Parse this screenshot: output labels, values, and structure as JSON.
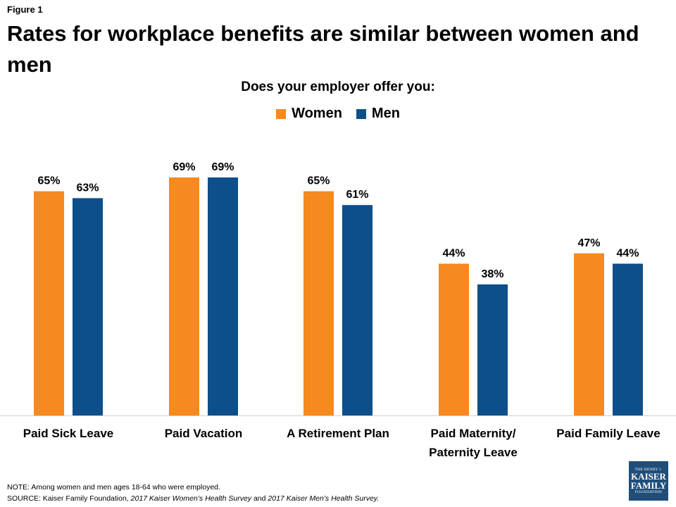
{
  "figure_label": "Figure 1",
  "title": "Rates for workplace benefits are similar between women and men",
  "subtitle": "Does your employer offer you:",
  "note": "NOTE:  Among women and men ages 18-64 who were employed.",
  "source_prefix": "SOURCE:  Kaiser Family Foundation, ",
  "source_survey1": "2017 Kaiser Women’s Health Survey",
  "source_and": " and ",
  "source_survey2": "2017 Kaiser Men’s Health Survey.",
  "logo": {
    "line1": "THE HENRY J.",
    "line2": "KAISER",
    "line3": "FAMILY",
    "line4": "FOUNDATION"
  },
  "colors": {
    "women": "#f6891f",
    "men": "#0c4f8b"
  },
  "chart_data": {
    "type": "bar",
    "categories": [
      [
        "Paid Sick Leave"
      ],
      [
        "Paid Vacation"
      ],
      [
        "A Retirement Plan"
      ],
      [
        "Paid Maternity/",
        "Paternity Leave"
      ],
      [
        "Paid Family Leave"
      ]
    ],
    "series": [
      {
        "name": "Women",
        "values": [
          65,
          69,
          65,
          44,
          47
        ],
        "labels": [
          "65%",
          "69%",
          "65%",
          "44%",
          "47%"
        ]
      },
      {
        "name": "Men",
        "values": [
          63,
          69,
          61,
          38,
          44
        ],
        "labels": [
          "63%",
          "69%",
          "61%",
          "38%",
          "44%"
        ]
      }
    ],
    "ylim": [
      0,
      69
    ],
    "grid": false,
    "legend": "top-center"
  }
}
